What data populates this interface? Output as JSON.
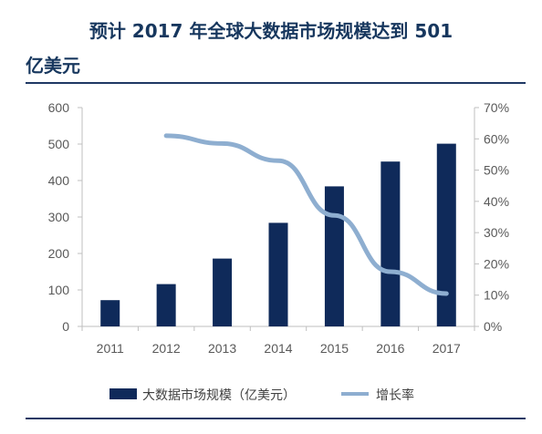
{
  "header": {
    "title_line1": "预计 2017 年全球大数据市场规模达到 501",
    "title_line2": "亿美元"
  },
  "colors": {
    "bar": "#0f2a5a",
    "line": "#8eaed0",
    "axis": "#bfbfbf",
    "tick_text": "#595959",
    "title": "#17375e"
  },
  "chart_data": {
    "type": "bar",
    "categories": [
      "2011",
      "2012",
      "2013",
      "2014",
      "2015",
      "2016",
      "2017"
    ],
    "series": [
      {
        "name": "大数据市场规模（亿美元）",
        "type": "bar",
        "axis": "left",
        "values": [
          72,
          116,
          186,
          284,
          384,
          452,
          501
        ]
      },
      {
        "name": "增长率",
        "type": "line",
        "axis": "right",
        "values": [
          null,
          0.61,
          0.585,
          0.53,
          0.355,
          0.175,
          0.105
        ]
      }
    ],
    "y_left": {
      "ticks": [
        "0",
        "100",
        "200",
        "300",
        "400",
        "500",
        "600"
      ],
      "lim": [
        0,
        600
      ]
    },
    "y_right": {
      "ticks": [
        "0%",
        "10%",
        "20%",
        "30%",
        "40%",
        "50%",
        "60%",
        "70%"
      ],
      "lim": [
        0,
        0.7
      ]
    },
    "legend_position": "bottom",
    "grid": false
  }
}
